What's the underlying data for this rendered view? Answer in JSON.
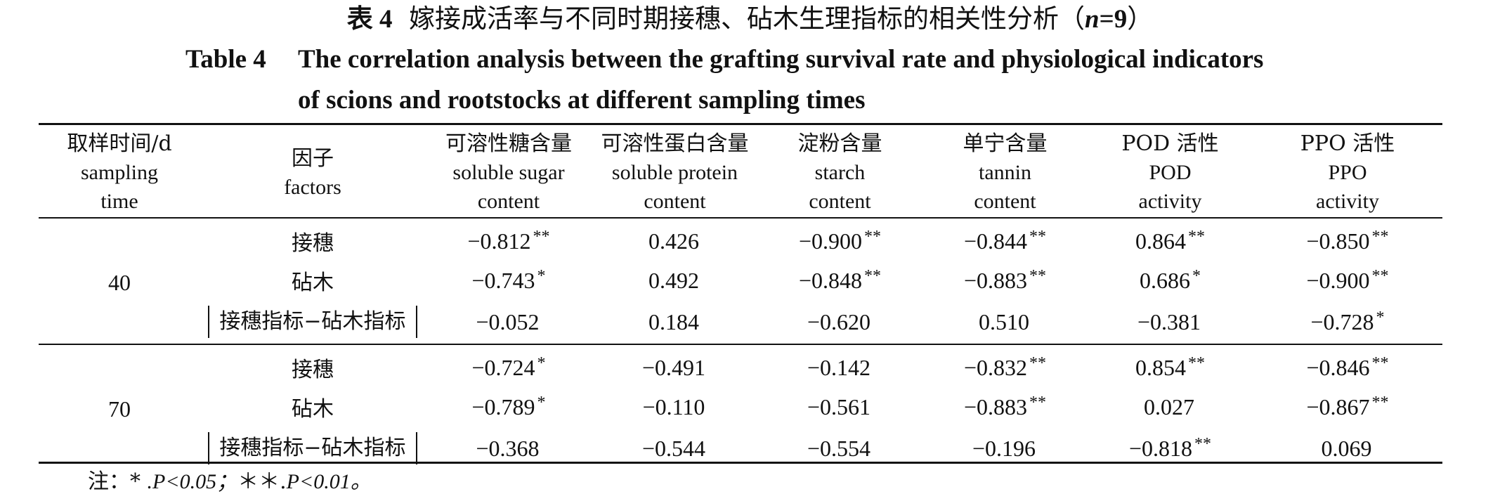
{
  "caption_cn": {
    "label": "表 4",
    "text": "嫁接成活率与不同时期接穗、砧木生理指标的相关性分析（",
    "n_label": "n",
    "n_value": "=9",
    "close": "）"
  },
  "caption_en": {
    "label": "Table 4",
    "line1": "The correlation analysis between the grafting survival rate and physiological indicators",
    "line2": "of scions and rootstocks at different sampling times"
  },
  "header": {
    "sampling_time": {
      "cn": "取样时间/d",
      "en1": "sampling",
      "en2": "time"
    },
    "factors": {
      "cn": "因子",
      "en": "factors"
    },
    "columns": [
      {
        "cn": "可溶性糖含量",
        "en1": "soluble sugar",
        "en2": "content"
      },
      {
        "cn": "可溶性蛋白含量",
        "en1": "soluble protein",
        "en2": "content"
      },
      {
        "cn": "淀粉含量",
        "en1": "starch",
        "en2": "content"
      },
      {
        "cn": "单宁含量",
        "en1": "tannin",
        "en2": "content"
      },
      {
        "cn": "POD 活性",
        "en1": "POD",
        "en2": "activity"
      },
      {
        "cn": "PPO 活性",
        "en1": "PPO",
        "en2": "activity"
      }
    ]
  },
  "groups": [
    {
      "time": "40",
      "rows": [
        {
          "factor": "接穗",
          "values": [
            {
              "v": "−0.812",
              "s": "**"
            },
            {
              "v": "0.426",
              "s": ""
            },
            {
              "v": "−0.900",
              "s": "**"
            },
            {
              "v": "−0.844",
              "s": "**"
            },
            {
              "v": "0.864",
              "s": "**"
            },
            {
              "v": "−0.850",
              "s": "**"
            }
          ]
        },
        {
          "factor": "砧木",
          "values": [
            {
              "v": "−0.743",
              "s": "*"
            },
            {
              "v": "0.492",
              "s": ""
            },
            {
              "v": "−0.848",
              "s": "**"
            },
            {
              "v": "−0.883",
              "s": "**"
            },
            {
              "v": "0.686",
              "s": "*"
            },
            {
              "v": "−0.900",
              "s": "**"
            }
          ]
        },
        {
          "factor": "接穗指标−砧木指标",
          "values": [
            {
              "v": "−0.052",
              "s": ""
            },
            {
              "v": "0.184",
              "s": ""
            },
            {
              "v": "−0.620",
              "s": ""
            },
            {
              "v": "0.510",
              "s": ""
            },
            {
              "v": "−0.381",
              "s": ""
            },
            {
              "v": "−0.728",
              "s": "*"
            }
          ]
        }
      ]
    },
    {
      "time": "70",
      "rows": [
        {
          "factor": "接穗",
          "values": [
            {
              "v": "−0.724",
              "s": "*"
            },
            {
              "v": "−0.491",
              "s": ""
            },
            {
              "v": "−0.142",
              "s": ""
            },
            {
              "v": "−0.832",
              "s": "**"
            },
            {
              "v": "0.854",
              "s": "**"
            },
            {
              "v": "−0.846",
              "s": "**"
            }
          ]
        },
        {
          "factor": "砧木",
          "values": [
            {
              "v": "−0.789",
              "s": "*"
            },
            {
              "v": "−0.110",
              "s": ""
            },
            {
              "v": "−0.561",
              "s": ""
            },
            {
              "v": "−0.883",
              "s": "**"
            },
            {
              "v": "0.027",
              "s": ""
            },
            {
              "v": "−0.867",
              "s": "**"
            }
          ]
        },
        {
          "factor": "接穗指标−砧木指标",
          "values": [
            {
              "v": "−0.368",
              "s": ""
            },
            {
              "v": "−0.544",
              "s": ""
            },
            {
              "v": "−0.554",
              "s": ""
            },
            {
              "v": "−0.196",
              "s": ""
            },
            {
              "v": "−0.818",
              "s": "**"
            },
            {
              "v": "0.069",
              "s": ""
            }
          ]
        }
      ]
    }
  ],
  "note": {
    "prefix": "注：*",
    "p1": ".P<0.05；",
    "mid": "＊＊.",
    "p2": "P<0.01。"
  }
}
